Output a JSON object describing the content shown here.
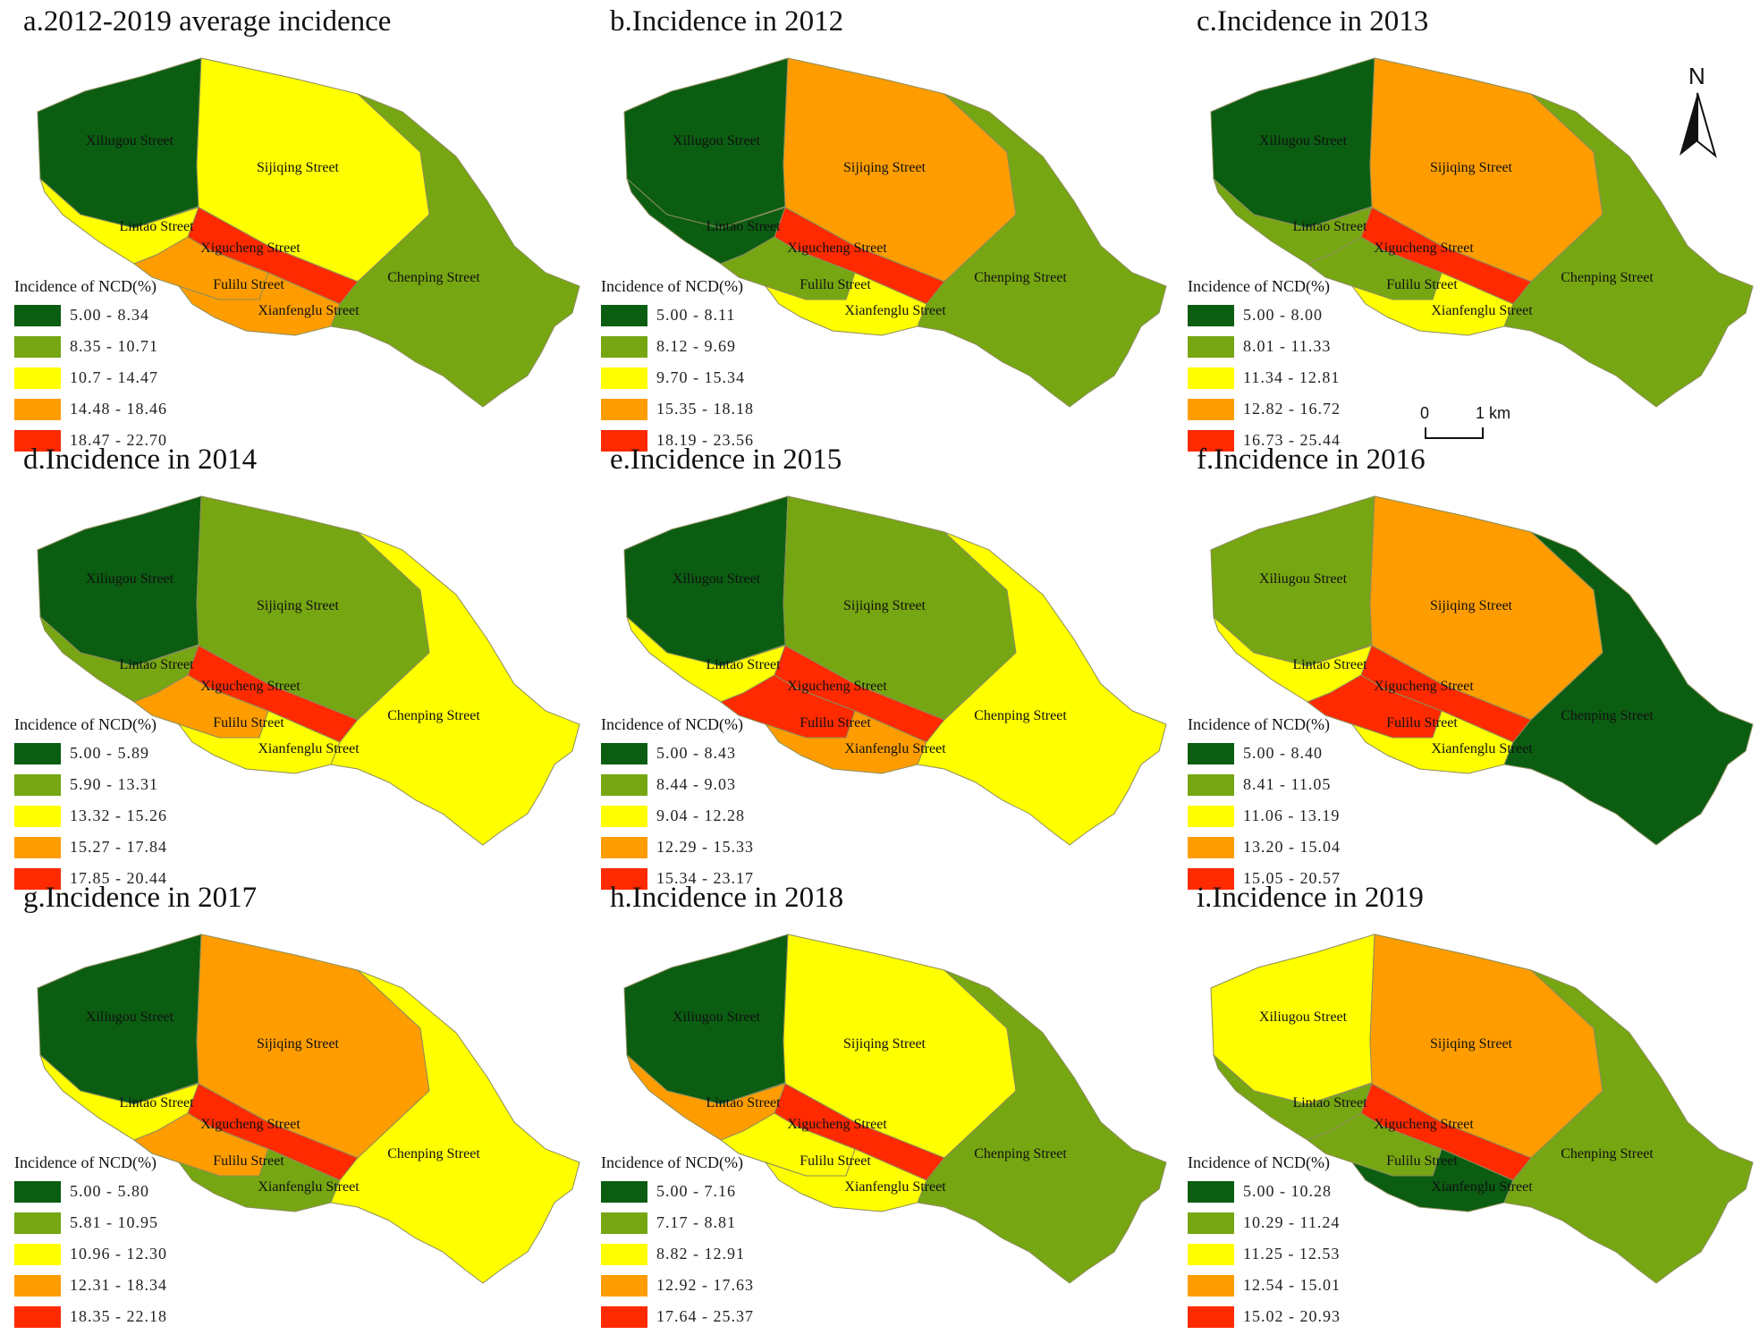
{
  "colors": {
    "dark_green": "#0b5d12",
    "olive_green": "#76a612",
    "yellow": "#ffff00",
    "orange": "#ff9d00",
    "red": "#ff2a00",
    "outline": "#8c8c5c"
  },
  "street_names": {
    "xiliugou": "Xiliugou Street",
    "sijiqing": "Sijiqing Street",
    "lintao": "Lintao Street",
    "xigucheng": "Xigucheng Street",
    "fulilu": "Fulilu Street",
    "xianfenglu": "Xianfenglu Street",
    "chenping": "Chenping Street"
  },
  "legend_title": "Incidence of NCD(%)",
  "north_label": "N",
  "scale": {
    "zero": "0",
    "km": "1 km"
  },
  "panels": [
    {
      "title": "a.2012-2019 average incidence",
      "legend": [
        "5.00 - 8.34",
        "8.35 - 10.71",
        "10.7 - 14.47",
        "14.48 - 18.46",
        "18.47 - 22.70"
      ],
      "classes": {
        "xiliugou": 0,
        "sijiqing": 2,
        "lintao": 2,
        "xigucheng": 4,
        "fulilu": 3,
        "xianfenglu": 3,
        "chenping": 1
      }
    },
    {
      "title": "b.Incidence in 2012",
      "legend": [
        "5.00 - 8.11",
        "8.12 - 9.69",
        "9.70 - 15.34",
        "15.35 - 18.18",
        "18.19 - 23.56"
      ],
      "classes": {
        "xiliugou": 0,
        "sijiqing": 3,
        "lintao": 0,
        "xigucheng": 4,
        "fulilu": 1,
        "xianfenglu": 2,
        "chenping": 1
      }
    },
    {
      "title": "c.Incidence in 2013",
      "legend": [
        "5.00 - 8.00",
        "8.01 - 11.33",
        "11.34 - 12.81",
        "12.82 - 16.72",
        "16.73 - 25.44"
      ],
      "classes": {
        "xiliugou": 0,
        "sijiqing": 3,
        "lintao": 1,
        "xigucheng": 4,
        "fulilu": 1,
        "xianfenglu": 2,
        "chenping": 1
      }
    },
    {
      "title": "d.Incidence in 2014",
      "legend": [
        "5.00 - 5.89",
        "5.90 - 13.31",
        "13.32 - 15.26",
        "15.27 - 17.84",
        "17.85 - 20.44"
      ],
      "classes": {
        "xiliugou": 0,
        "sijiqing": 1,
        "lintao": 1,
        "xigucheng": 4,
        "fulilu": 3,
        "xianfenglu": 2,
        "chenping": 2
      }
    },
    {
      "title": "e.Incidence in 2015",
      "legend": [
        "5.00 - 8.43",
        "8.44 - 9.03",
        "9.04 - 12.28",
        "12.29 - 15.33",
        "15.34 - 23.17"
      ],
      "classes": {
        "xiliugou": 0,
        "sijiqing": 1,
        "lintao": 2,
        "xigucheng": 4,
        "fulilu": 4,
        "xianfenglu": 3,
        "chenping": 2
      }
    },
    {
      "title": "f.Incidence in 2016",
      "legend": [
        "5.00 - 8.40",
        "8.41 - 11.05",
        "11.06 - 13.19",
        "13.20 - 15.04",
        "15.05 - 20.57"
      ],
      "classes": {
        "xiliugou": 1,
        "sijiqing": 3,
        "lintao": 2,
        "xigucheng": 4,
        "fulilu": 4,
        "xianfenglu": 2,
        "chenping": 0
      }
    },
    {
      "title": "g.Incidence in 2017",
      "legend": [
        "5.00 - 5.80",
        "5.81 - 10.95",
        "10.96 - 12.30",
        "12.31 - 18.34",
        "18.35 - 22.18"
      ],
      "classes": {
        "xiliugou": 0,
        "sijiqing": 3,
        "lintao": 2,
        "xigucheng": 4,
        "fulilu": 3,
        "xianfenglu": 1,
        "chenping": 2
      }
    },
    {
      "title": "h.Incidence in 2018",
      "legend": [
        "5.00 - 7.16",
        "7.17 - 8.81",
        "8.82 - 12.91",
        "12.92 - 17.63",
        "17.64 - 25.37"
      ],
      "classes": {
        "xiliugou": 0,
        "sijiqing": 2,
        "lintao": 3,
        "xigucheng": 4,
        "fulilu": 2,
        "xianfenglu": 2,
        "chenping": 1
      }
    },
    {
      "title": "i.Incidence in 2019",
      "legend": [
        "5.00 - 10.28",
        "10.29 - 11.24",
        "11.25 - 12.53",
        "12.54 - 15.01",
        "15.02 - 20.93"
      ],
      "classes": {
        "xiliugou": 2,
        "sijiqing": 3,
        "lintao": 1,
        "xigucheng": 4,
        "fulilu": 1,
        "xianfenglu": 0,
        "chenping": 1
      }
    }
  ]
}
